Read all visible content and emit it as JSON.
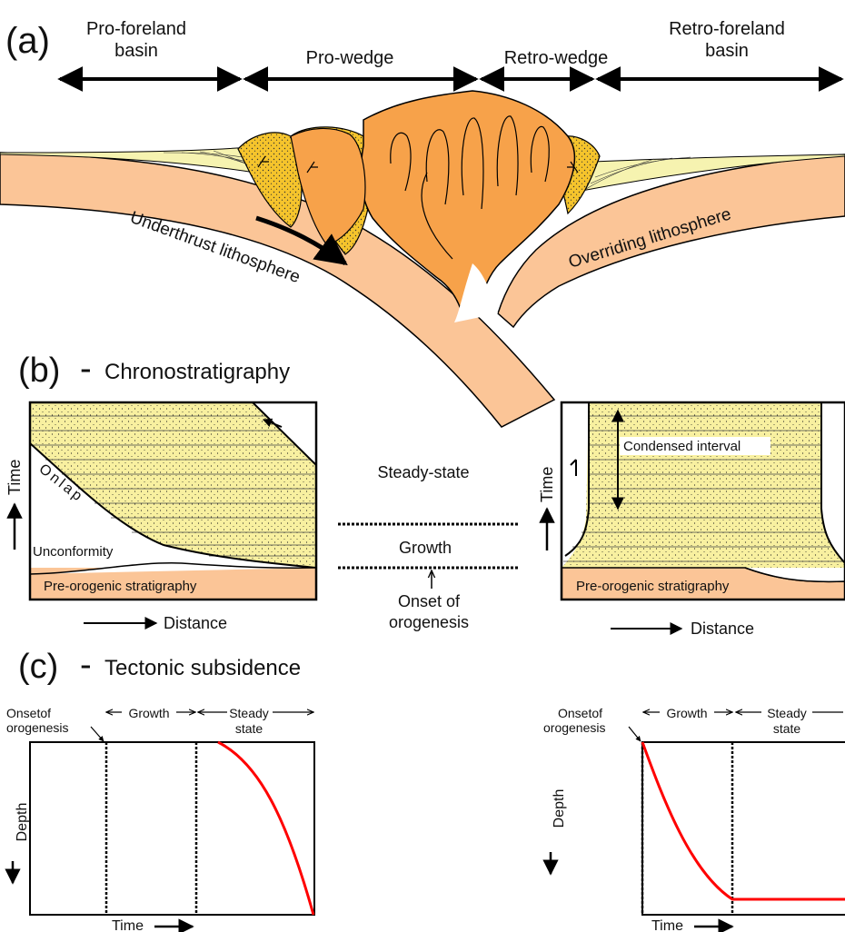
{
  "panel_a": {
    "letter": "(a)",
    "pro_foreland_line1": "Pro-foreland",
    "pro_foreland_line2": "basin",
    "pro_wedge": "Pro-wedge",
    "retro_wedge": "Retro-wedge",
    "retro_foreland_line1": "Retro-foreland",
    "retro_foreland_line2": "basin",
    "underthrust": "Underthrust lithosphere",
    "overriding": "Overriding lithosphere"
  },
  "panel_b": {
    "letter": "(b)",
    "dash": "-",
    "title": "Chronostratigraphy",
    "left": {
      "onlap": "Onlap",
      "unconformity": "Unconformity",
      "basement": "Pre-orogenic stratigraphy",
      "time": "Time",
      "distance": "Distance"
    },
    "middle": {
      "steady_state": "Steady-state",
      "growth": "Growth",
      "onset_line1": "Onset of",
      "onset_line2": "orogenesis"
    },
    "right": {
      "condensed": "Condensed interval",
      "basement": "Pre-orogenic stratigraphy",
      "time": "Time",
      "distance": "Distance"
    }
  },
  "panel_c": {
    "letter": "(c)",
    "dash": "-",
    "title": "Tectonic subsidence",
    "left": {
      "onset_line1": "Onsetof",
      "onset_line2": "orogenesis",
      "growth": "Growth",
      "steady_line1": "Steady",
      "steady_line2": "state",
      "depth": "Depth",
      "time": "Time"
    },
    "right": {
      "onset_line1": "Onsetof",
      "onset_line2": "orogenesis",
      "growth": "Growth",
      "steady_line1": "Steady",
      "steady_line2": "state",
      "depth": "Depth",
      "time": "Time"
    }
  },
  "colors": {
    "lithosphere": "#fbc597",
    "wedge_core": "#f7a24a",
    "wedge_sediment": "#f5c42c",
    "basin_fill": "#f6f3b0",
    "strata_fill": "#f8f0a0",
    "subsidence_curve": "#ff0000"
  }
}
